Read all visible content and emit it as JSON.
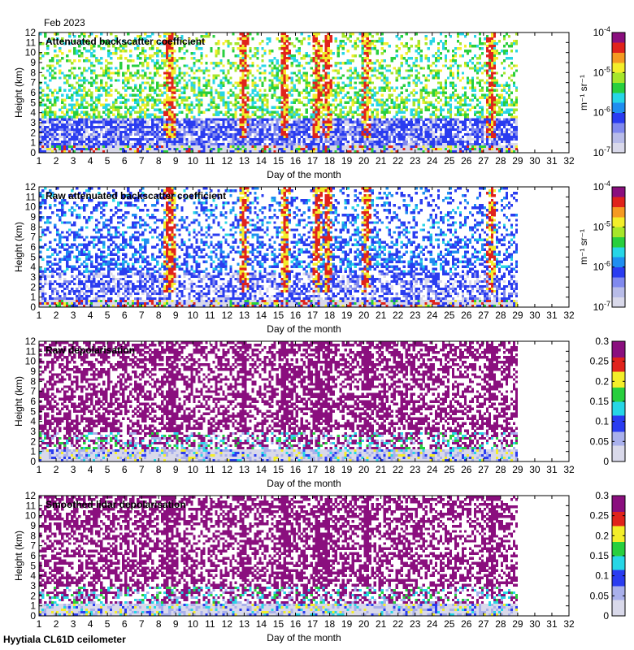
{
  "figure": {
    "month_label": "Feb 2023",
    "footer": "Hyytiala CL61D ceilometer",
    "colors": {
      "pale": "#d9d9ea",
      "blue": "#2a3cf0",
      "cyan": "#27d6e6",
      "green": "#28cf3e",
      "yellow": "#f3ee2a",
      "red": "#e0231c",
      "purple": "#8a0f7e",
      "grid": "#000000"
    }
  },
  "chart_data": [
    {
      "type": "heatmap",
      "title": "Attenuated backscatter coefficient",
      "xlabel": "Day of the month",
      "ylabel": "Height (km)",
      "xlim": [
        1,
        32
      ],
      "ylim": [
        0,
        12
      ],
      "x_ticks": [
        1,
        2,
        3,
        4,
        5,
        6,
        7,
        8,
        9,
        10,
        11,
        12,
        13,
        14,
        15,
        16,
        17,
        18,
        19,
        20,
        21,
        22,
        23,
        24,
        25,
        26,
        27,
        28,
        29,
        30,
        31,
        32
      ],
      "y_ticks": [
        0,
        1,
        2,
        3,
        4,
        5,
        6,
        7,
        8,
        9,
        10,
        11,
        12
      ],
      "data_end_day": 29,
      "colorbar": {
        "scale": "log",
        "range": [
          1e-07,
          0.0001
        ],
        "ticks": [
          "10^-7",
          "10^-6",
          "10^-5",
          "10^-4"
        ],
        "unit": "m⁻¹ sr⁻¹"
      }
    },
    {
      "type": "heatmap",
      "title": "Raw attenuated backscatter coefficient",
      "xlabel": "Day of the month",
      "ylabel": "Height (km)",
      "xlim": [
        1,
        32
      ],
      "ylim": [
        0,
        12
      ],
      "x_ticks": [
        1,
        2,
        3,
        4,
        5,
        6,
        7,
        8,
        9,
        10,
        11,
        12,
        13,
        14,
        15,
        16,
        17,
        18,
        19,
        20,
        21,
        22,
        23,
        24,
        25,
        26,
        27,
        28,
        29,
        30,
        31,
        32
      ],
      "y_ticks": [
        0,
        1,
        2,
        3,
        4,
        5,
        6,
        7,
        8,
        9,
        10,
        11,
        12
      ],
      "data_end_day": 29,
      "colorbar": {
        "scale": "log",
        "range": [
          1e-07,
          0.0001
        ],
        "ticks": [
          "10^-7",
          "10^-6",
          "10^-5",
          "10^-4"
        ],
        "unit": "m⁻¹ sr⁻¹"
      }
    },
    {
      "type": "heatmap",
      "title": "Raw depolarisation",
      "xlabel": "Day of the month",
      "ylabel": "Height (km)",
      "xlim": [
        1,
        32
      ],
      "ylim": [
        0,
        12
      ],
      "x_ticks": [
        1,
        2,
        3,
        4,
        5,
        6,
        7,
        8,
        9,
        10,
        11,
        12,
        13,
        14,
        15,
        16,
        17,
        18,
        19,
        20,
        21,
        22,
        23,
        24,
        25,
        26,
        27,
        28,
        29,
        30,
        31,
        32
      ],
      "y_ticks": [
        0,
        1,
        2,
        3,
        4,
        5,
        6,
        7,
        8,
        9,
        10,
        11,
        12
      ],
      "data_end_day": 29,
      "colorbar": {
        "scale": "linear",
        "range": [
          0,
          0.3
        ],
        "ticks": [
          "0",
          "0.05",
          "0.1",
          "0.15",
          "0.2",
          "0.25",
          "0.3"
        ],
        "unit": ""
      }
    },
    {
      "type": "heatmap",
      "title": "Smoothed lidar depolarisation",
      "xlabel": "Day of the month",
      "ylabel": "Height (km)",
      "xlim": [
        1,
        32
      ],
      "ylim": [
        0,
        12
      ],
      "x_ticks": [
        1,
        2,
        3,
        4,
        5,
        6,
        7,
        8,
        9,
        10,
        11,
        12,
        13,
        14,
        15,
        16,
        17,
        18,
        19,
        20,
        21,
        22,
        23,
        24,
        25,
        26,
        27,
        28,
        29,
        30,
        31,
        32
      ],
      "y_ticks": [
        0,
        1,
        2,
        3,
        4,
        5,
        6,
        7,
        8,
        9,
        10,
        11,
        12
      ],
      "data_end_day": 29,
      "colorbar": {
        "scale": "linear",
        "range": [
          0,
          0.3
        ],
        "ticks": [
          "0",
          "0.05",
          "0.1",
          "0.15",
          "0.2",
          "0.25",
          "0.3"
        ],
        "unit": ""
      }
    }
  ]
}
